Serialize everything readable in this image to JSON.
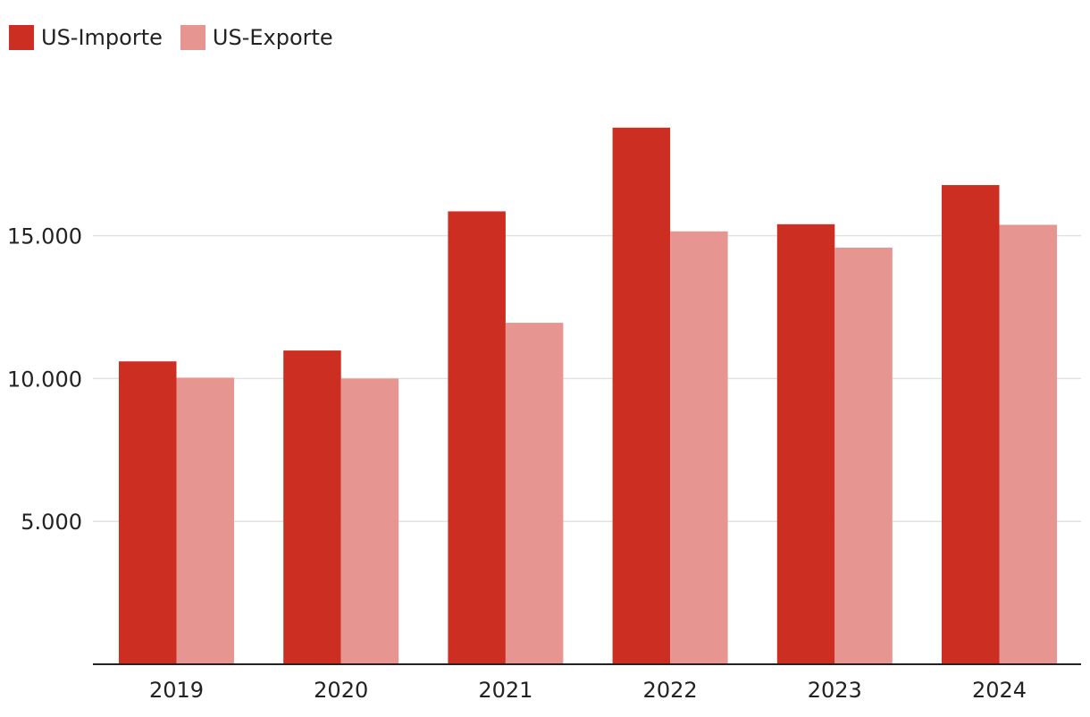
{
  "chart_data": {
    "type": "bar",
    "categories": [
      "2019",
      "2020",
      "2021",
      "2022",
      "2023",
      "2024"
    ],
    "series": [
      {
        "name": "US-Importe",
        "values": [
          10600,
          10980,
          15850,
          18780,
          15400,
          16770
        ],
        "color": "#cc2e22"
      },
      {
        "name": "US-Exporte",
        "values": [
          10030,
          10000,
          11950,
          15150,
          14580,
          15380
        ],
        "color": "#e69590"
      }
    ],
    "yticks": [
      5000,
      10000,
      15000
    ],
    "ytick_labels": [
      "5.000",
      "10.000",
      "15.000"
    ],
    "ylim": [
      0,
      20000
    ],
    "title": "",
    "xlabel": "",
    "ylabel": "",
    "grid": true,
    "legend_position": "top-left"
  },
  "colors": {
    "gridline": "#e2e2e2",
    "axis": "#222222"
  }
}
